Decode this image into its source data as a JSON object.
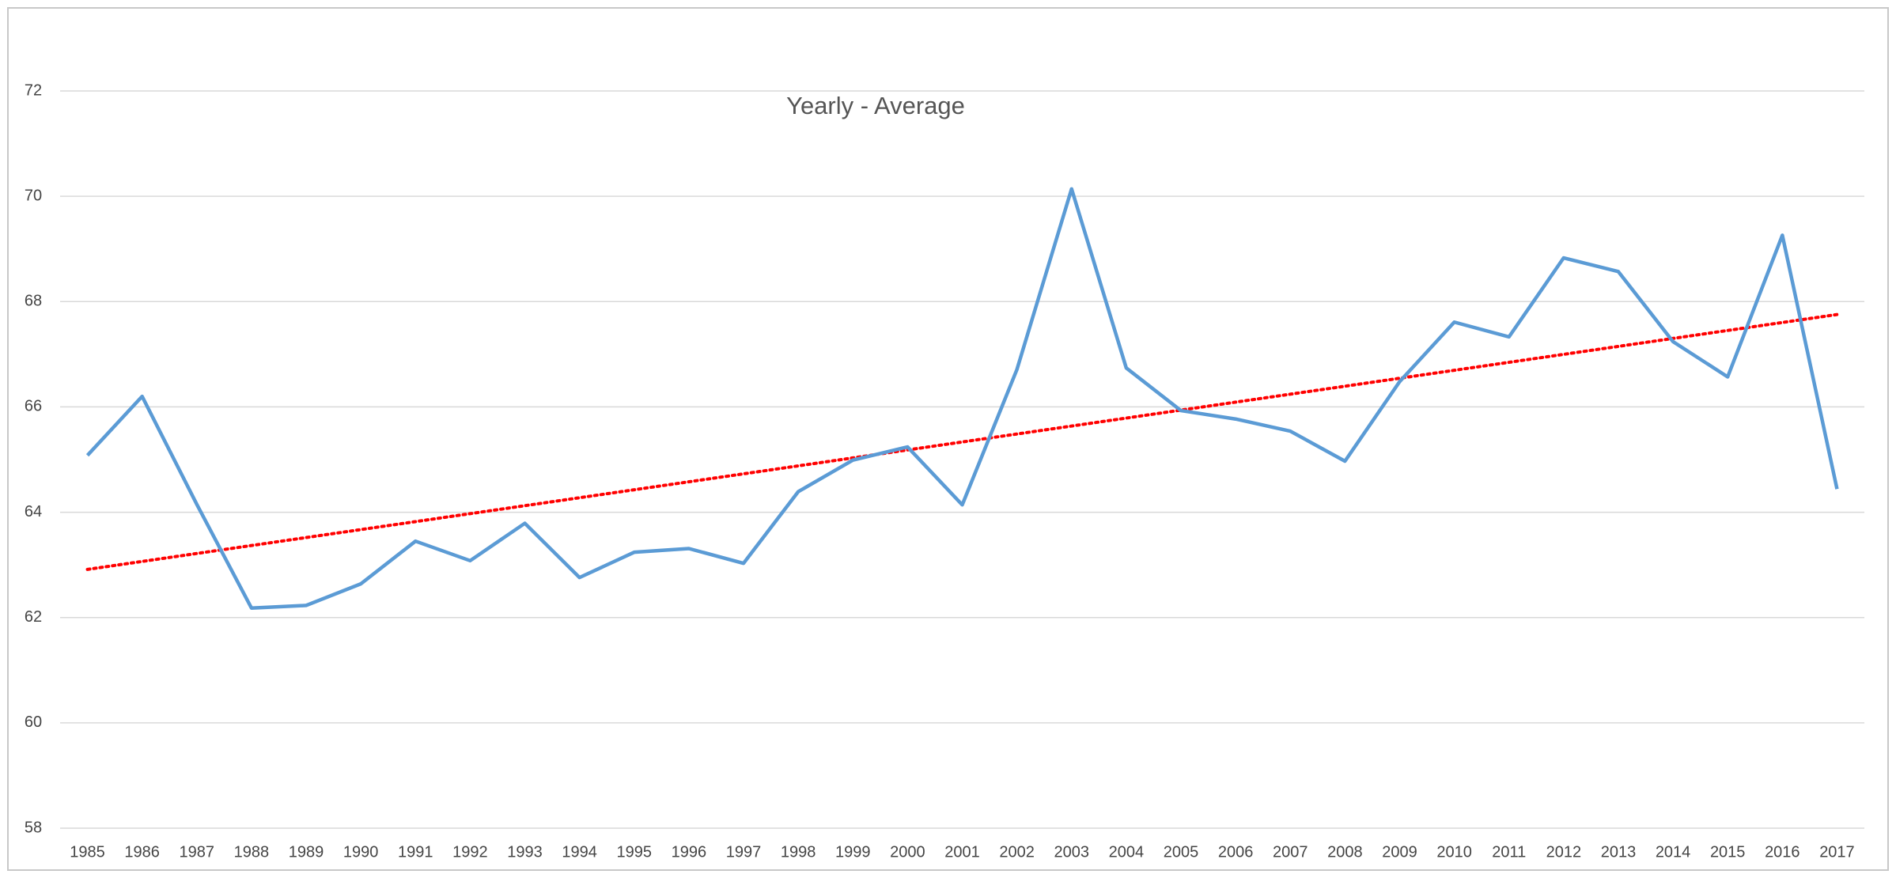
{
  "chart_data": {
    "type": "line",
    "title": "Yearly - Average",
    "categories": [
      "1985",
      "1986",
      "1987",
      "1988",
      "1989",
      "1990",
      "1991",
      "1992",
      "1993",
      "1994",
      "1995",
      "1996",
      "1997",
      "1998",
      "1999",
      "2000",
      "2001",
      "2002",
      "2003",
      "2004",
      "2005",
      "2006",
      "2007",
      "2008",
      "2009",
      "2010",
      "2011",
      "2012",
      "2013",
      "2014",
      "2015",
      "2016",
      "2017"
    ],
    "values": [
      65.08,
      66.2,
      64.15,
      62.18,
      62.23,
      62.64,
      63.45,
      63.08,
      63.79,
      62.76,
      63.24,
      63.31,
      63.03,
      64.39,
      64.99,
      65.24,
      64.14,
      66.71,
      70.14,
      66.74,
      65.93,
      65.77,
      65.54,
      64.97,
      66.48,
      67.61,
      67.33,
      68.83,
      68.57,
      67.24,
      66.57,
      69.26,
      64.44
    ],
    "color": "#5b9bd5",
    "trendline": {
      "type": "linear",
      "color": "#ff0000"
    },
    "ylim": [
      58,
      72
    ],
    "yticks": [
      58,
      60,
      62,
      64,
      66,
      68,
      70,
      72
    ],
    "grid": true
  }
}
